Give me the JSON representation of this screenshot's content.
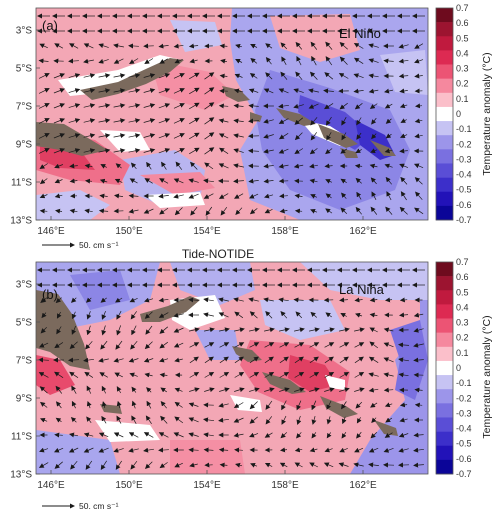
{
  "figure": {
    "middle_title": "Tide-NOTIDE",
    "colorbar": {
      "title": "Temperature anomaly (°C)",
      "ticks": [
        "0.7",
        "0.6",
        "0.5",
        "0.4",
        "0.3",
        "0.2",
        "0.1",
        "0",
        "-0.1",
        "-0.2",
        "-0.3",
        "-0.4",
        "-0.5",
        "-0.6",
        "-0.7"
      ],
      "colors": [
        "#6e0b1e",
        "#9c1430",
        "#c01a3e",
        "#dd2a52",
        "#ec5474",
        "#f5889e",
        "#fbbfca",
        "#ffffff",
        "#c6c3f3",
        "#9c95ea",
        "#7a70e0",
        "#5a4ed6",
        "#3c2fca",
        "#2212b8",
        "#0b0598"
      ]
    },
    "scale_arrow": {
      "label": "50. cm s⁻¹",
      "value": 50,
      "unit": "cm s⁻¹"
    },
    "x_ticks": [
      "146°E",
      "150°E",
      "154°E",
      "158°E",
      "162°E"
    ],
    "y_ticks": [
      "3°S",
      "5°S",
      "7°S",
      "9°S",
      "11°S",
      "13°S"
    ],
    "colors": {
      "land": "#7b6a5d",
      "warm": "#f3a7b5",
      "cool": "#a9a6ee",
      "arrow": "#1a1a1a"
    }
  },
  "panels": [
    {
      "label": "(a)",
      "event": "El Niño"
    },
    {
      "label": "(b)",
      "event": "La Niña"
    }
  ]
}
